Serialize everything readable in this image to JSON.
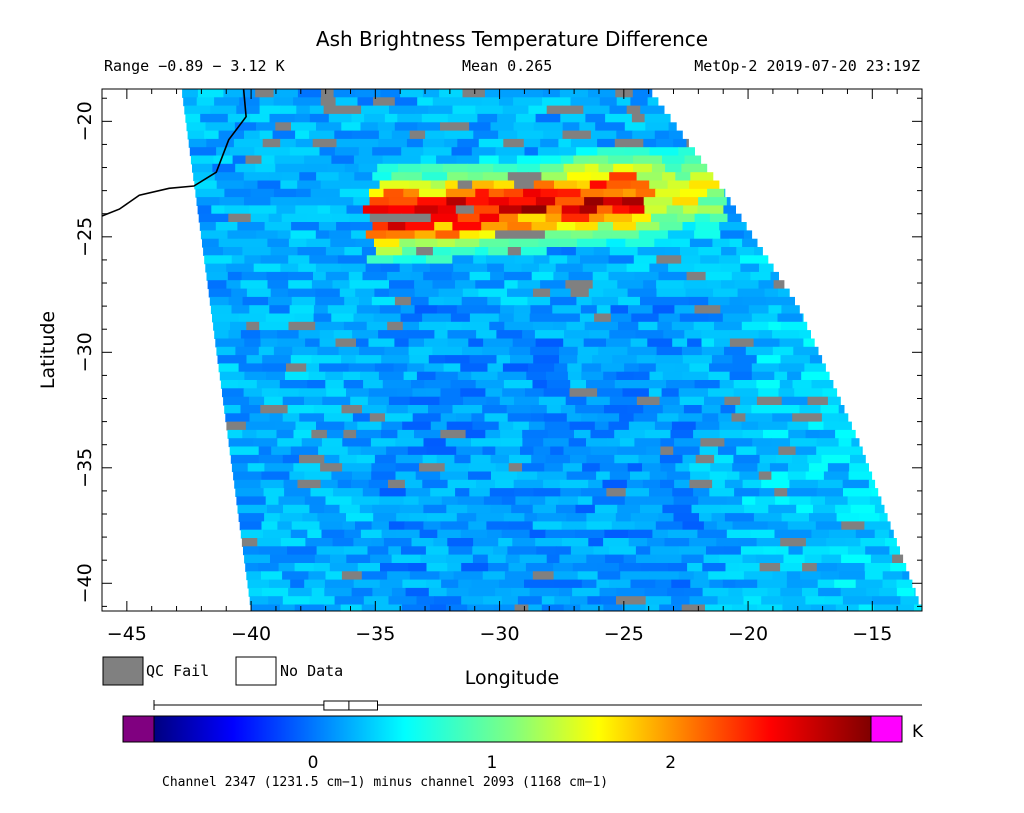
{
  "chart_data": {
    "type": "heatmap",
    "title": "Ash Brightness Temperature Difference",
    "range_text": "Range −0.89 − 3.12 K",
    "mean_text": "Mean 0.265",
    "source_text": "MetOp-2 2019-07-20 23:19Z",
    "xlabel": "Longitude",
    "ylabel": "Latitude",
    "xlim": [
      -46,
      -13
    ],
    "ylim": [
      -41.2,
      -18.6
    ],
    "xticks": [
      -45,
      -40,
      -35,
      -30,
      -25,
      -20,
      -15
    ],
    "yticks": [
      -20,
      -25,
      -30,
      -35,
      -40
    ],
    "xtick_labels": [
      "−45",
      "−40",
      "−35",
      "−30",
      "−25",
      "−20",
      "−15"
    ],
    "ytick_labels": [
      "−20",
      "−25",
      "−30",
      "−35",
      "−40"
    ],
    "swath": {
      "west_edge": [
        [
          -42.8,
          -18.6
        ],
        [
          -40.0,
          -41.2
        ]
      ],
      "east_edge": [
        [
          -24.0,
          -18.6
        ],
        [
          -21.0,
          -23.0
        ],
        [
          -18.0,
          -28.0
        ],
        [
          -15.5,
          -34.0
        ],
        [
          -13.0,
          -41.2
        ]
      ]
    },
    "ash_plume": {
      "lon_range": [
        -35.0,
        -21.0
      ],
      "lat_range": [
        -25.5,
        -22.5
      ],
      "peak_value": 3.12
    },
    "coastline": [
      [
        -40.3,
        -18.6
      ],
      [
        -40.2,
        -19.8
      ],
      [
        -40.9,
        -20.8
      ],
      [
        -41.4,
        -22.2
      ],
      [
        -42.3,
        -22.8
      ],
      [
        -43.3,
        -22.9
      ],
      [
        -44.5,
        -23.2
      ],
      [
        -45.3,
        -23.8
      ],
      [
        -46.0,
        -24.1
      ]
    ],
    "legend": {
      "qc_fail": "QC Fail",
      "no_data": "No Data",
      "qc_fail_color": "#808080",
      "no_data_color": "#ffffff"
    },
    "colorbar": {
      "min": -0.89,
      "max": 3.12,
      "ticks": [
        0,
        1,
        2
      ],
      "tick_labels": [
        "0",
        "1",
        "2"
      ],
      "unit": "K",
      "low_color": "#800080",
      "high_color": "#ff00ff",
      "box_range": [
        0.06,
        0.36
      ],
      "box_median": 0.2,
      "caption": "Channel 2347 (1231.5 cm−1) minus channel 2093 (1168 cm−1)"
    }
  }
}
